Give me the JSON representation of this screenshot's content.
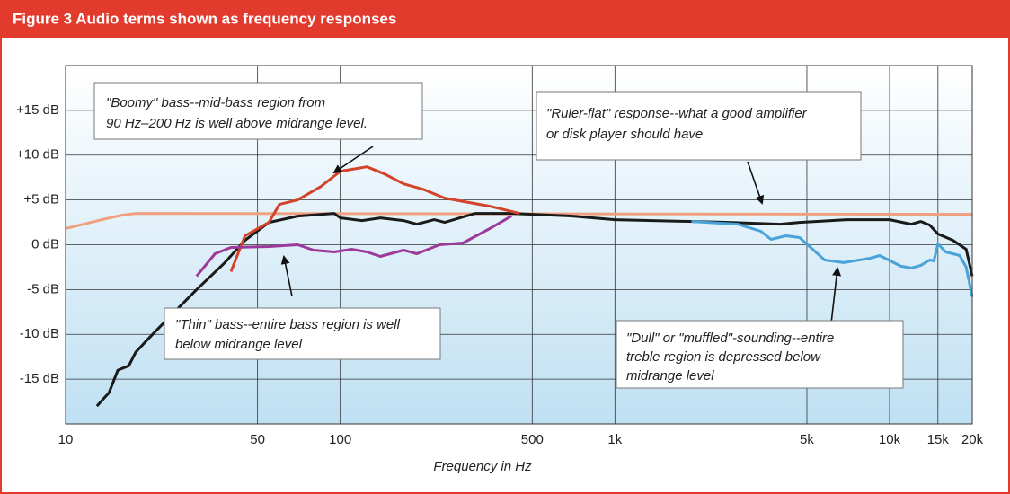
{
  "chart_data": {
    "type": "line",
    "title": "Figure 3 Audio terms shown as frequency responses",
    "xlabel": "Frequency in Hz",
    "log_x": true,
    "grid": true,
    "xlim": [
      10,
      20000
    ],
    "xticks": [
      10,
      50,
      100,
      500,
      {
        "value": 1000,
        "label": "1k"
      },
      {
        "value": 5000,
        "label": "5k"
      },
      {
        "value": 10000,
        "label": "10k"
      },
      {
        "value": 15000,
        "label": "15k"
      },
      {
        "value": 20000,
        "label": "20k"
      }
    ],
    "ylim": [
      -20,
      20
    ],
    "yticks": [
      {
        "value": 15,
        "label": "+15 dB"
      },
      {
        "value": 10,
        "label": "+10 dB"
      },
      {
        "value": 5,
        "label": "+5 dB"
      },
      {
        "value": 0,
        "label": "0 dB"
      },
      {
        "value": -5,
        "label": "-5 dB"
      },
      {
        "value": -10,
        "label": "-10 dB"
      },
      {
        "value": -15,
        "label": "-15 dB"
      }
    ],
    "series": [
      {
        "color": "#f0a080",
        "x": [
          10,
          12,
          14,
          16,
          18,
          20000
        ],
        "values": [
          1.8,
          2.4,
          2.9,
          3.3,
          3.5,
          3.4
        ]
      },
      {
        "color": "#1a1a1a",
        "x": [
          13,
          14.4,
          15.5,
          17,
          18,
          20,
          24,
          30,
          38,
          45,
          55,
          70,
          95,
          100,
          120,
          140,
          170,
          190,
          220,
          240,
          310,
          420,
          700,
          1000,
          2600,
          4000,
          4700,
          7000,
          10000,
          12000,
          13000,
          14000,
          15000,
          17000,
          19000,
          20000
        ],
        "values": [
          -18,
          -16.5,
          -14,
          -13.5,
          -12,
          -10.5,
          -8,
          -5,
          -2,
          0.5,
          2.5,
          3.2,
          3.5,
          3,
          2.7,
          3,
          2.7,
          2.3,
          2.8,
          2.5,
          3.5,
          3.5,
          3.2,
          2.8,
          2.5,
          2.3,
          2.5,
          2.8,
          2.8,
          2.3,
          2.6,
          2.2,
          1.2,
          0.5,
          -0.5,
          -3.5
        ]
      },
      {
        "color": "#d2432a",
        "x": [
          40,
          45,
          55,
          60,
          70,
          85,
          100,
          125,
          145,
          170,
          200,
          240,
          350,
          450
        ],
        "values": [
          -3,
          1,
          2.5,
          4.5,
          5,
          6.5,
          8.2,
          8.7,
          7.9,
          6.8,
          6.2,
          5.2,
          4.3,
          3.5
        ]
      },
      {
        "color": "#9b3a9b",
        "x": [
          30,
          35,
          40,
          55,
          70,
          80,
          95,
          110,
          125,
          140,
          170,
          190,
          230,
          280,
          350,
          420
        ],
        "values": [
          -3.5,
          -1,
          -0.3,
          -0.2,
          0,
          -0.6,
          -0.8,
          -0.5,
          -0.8,
          -1.3,
          -0.6,
          -1,
          0,
          0.2,
          1.8,
          3.2
        ]
      },
      {
        "color": "#4aa3d8",
        "x": [
          1900,
          2800,
          3400,
          3700,
          4200,
          4700,
          5800,
          6800,
          8500,
          9200,
          11000,
          12000,
          13000,
          14000,
          14500,
          15000,
          16000,
          17000,
          18000,
          19000,
          20000
        ],
        "values": [
          2.6,
          2.3,
          1.5,
          0.6,
          1,
          0.8,
          -1.7,
          -2,
          -1.5,
          -1.2,
          -2.4,
          -2.6,
          -2.3,
          -1.7,
          -1.8,
          0.1,
          -0.8,
          -1,
          -1.2,
          -2.5,
          -5.8
        ]
      }
    ],
    "annotations": [
      {
        "lines": [
          "\"Boomy\" bass--mid-bass region from",
          "90 Hz–200 Hz is well above midrange level."
        ]
      },
      {
        "lines": [
          "\"Ruler-flat\" response--what a good amplifier",
          "or disk player should have"
        ]
      },
      {
        "lines": [
          "\"Thin\" bass--entire bass region is well",
          "below midrange level"
        ]
      },
      {
        "lines": [
          "\"Dull\" or \"muffled\"-sounding--entire",
          "treble region is depressed below",
          "midrange level"
        ]
      }
    ]
  }
}
